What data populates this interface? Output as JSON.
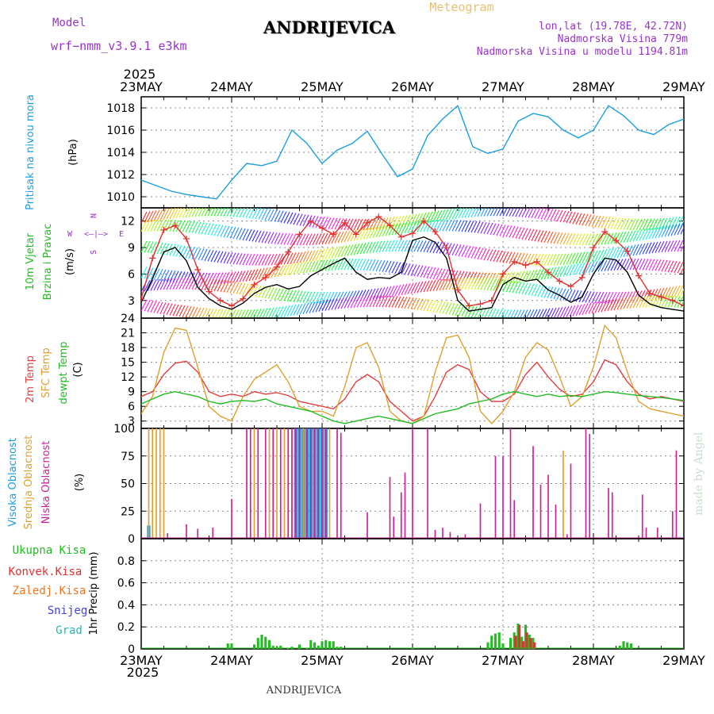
{
  "header": {
    "model_label": "Model",
    "model_name": "wrf−nmm_v3.9.1  e3km",
    "station": "ANDRIJEVICA",
    "product": "Meteogram",
    "lonlat": "lon,lat (19.78E, 42.72N)",
    "elevation": "Nadmorska Visina 779m",
    "model_elevation": "Nadmorska Visina u modelu 1194.81m",
    "footer_station": "ANDRIJEVICA",
    "watermark": "made by Angel"
  },
  "colors": {
    "pressure": "#1a9ee0",
    "wind_speed": "#000000",
    "wind_gust": "#e03030",
    "temp2m": "#e04040",
    "sfc_temp": "#e0a030",
    "dewpt": "#22bb22",
    "high_cloud": "#1a9ee0",
    "mid_cloud": "#e0a030",
    "low_cloud": "#cc2299",
    "total_precip": "#22bb22",
    "conv_precip": "#e03030",
    "frz_precip": "#ee7722",
    "snow": "#4444dd",
    "graupel": "#22bbbb",
    "compass": "#9933cc"
  },
  "time_axis": {
    "year": "2025",
    "ticks": [
      "23MAY",
      "24MAY",
      "25MAY",
      "26MAY",
      "27MAY",
      "28MAY",
      "29MAY"
    ]
  },
  "chart_data": [
    {
      "type": "line",
      "title": "Pritisak na nivou mora",
      "ylabel": "(hPa)",
      "ylim": [
        1009,
        1019
      ],
      "yticks": [
        "1010",
        "1012",
        "1014",
        "1016",
        "1018"
      ],
      "series": [
        {
          "name": "Pritisak na nivou mora",
          "x": [
            0,
            4,
            8,
            12,
            16,
            20,
            24,
            28,
            32,
            36,
            40,
            44,
            48,
            52,
            56,
            60,
            64,
            68,
            72,
            76,
            80,
            84,
            88,
            92,
            96,
            100,
            104,
            108,
            112,
            116,
            120,
            124,
            128,
            132,
            136,
            140,
            144
          ],
          "values": [
            1011.5,
            1011.0,
            1010.5,
            1010.2,
            1010.0,
            1009.8,
            1011.5,
            1013.0,
            1012.8,
            1013.2,
            1016.0,
            1014.8,
            1013.0,
            1014.2,
            1014.8,
            1015.9,
            1013.8,
            1011.8,
            1012.5,
            1015.5,
            1017.0,
            1018.2,
            1014.5,
            1013.9,
            1014.3,
            1016.8,
            1017.5,
            1017.2,
            1016.0,
            1015.3,
            1016.0,
            1018.2,
            1017.3,
            1016.0,
            1015.6,
            1016.5,
            1017.0
          ]
        }
      ]
    },
    {
      "type": "line",
      "title": "10m Vjetar Brzina i Pravac",
      "ylabel": "(m/s)",
      "ylim": [
        1,
        13.5
      ],
      "yticks": [
        "3",
        "6",
        "9",
        "12"
      ],
      "compass": [
        "N",
        "S",
        "E",
        "W",
        "<—|—>"
      ],
      "series": [
        {
          "name": "Brzina",
          "x": [
            0,
            3,
            6,
            9,
            12,
            15,
            18,
            21,
            24,
            27,
            30,
            33,
            36,
            39,
            42,
            45,
            48,
            51,
            54,
            57,
            60,
            63,
            66,
            69,
            72,
            75,
            78,
            81,
            84,
            87,
            90,
            93,
            96,
            99,
            102,
            105,
            108,
            111,
            114,
            117,
            120,
            123,
            126,
            129,
            132,
            135,
            138,
            141,
            144
          ],
          "values": [
            2.8,
            5.5,
            8.5,
            9.0,
            7.5,
            4.5,
            3.2,
            2.4,
            2.0,
            2.7,
            3.8,
            4.5,
            4.8,
            4.3,
            4.6,
            5.8,
            6.5,
            7.2,
            7.8,
            6.2,
            5.4,
            5.6,
            5.5,
            6.2,
            9.8,
            10.2,
            9.6,
            7.8,
            3.0,
            1.8,
            2.0,
            2.2,
            4.8,
            5.6,
            5.2,
            5.4,
            4.2,
            3.6,
            2.8,
            3.4,
            6.0,
            7.8,
            7.6,
            6.2,
            3.6,
            2.6,
            2.2,
            2.0,
            1.8
          ]
        },
        {
          "name": "Udari",
          "x": [
            0,
            3,
            6,
            9,
            12,
            15,
            18,
            21,
            24,
            27,
            30,
            33,
            36,
            39,
            42,
            45,
            48,
            51,
            54,
            57,
            60,
            63,
            66,
            69,
            72,
            75,
            78,
            81,
            84,
            87,
            90,
            93,
            96,
            99,
            102,
            105,
            108,
            111,
            114,
            117,
            120,
            123,
            126,
            129,
            132,
            135,
            138,
            141,
            144
          ],
          "values": [
            3.2,
            7.8,
            11.0,
            11.5,
            10.0,
            6.5,
            4.0,
            3.0,
            2.4,
            3.2,
            4.8,
            5.6,
            6.8,
            8.5,
            10.5,
            12.0,
            11.2,
            10.5,
            11.8,
            10.5,
            11.8,
            12.5,
            11.5,
            10.2,
            10.6,
            12.0,
            10.8,
            9.0,
            4.2,
            2.4,
            2.6,
            3.0,
            6.0,
            7.4,
            7.0,
            7.4,
            6.2,
            5.2,
            4.6,
            5.6,
            9.0,
            10.8,
            9.8,
            8.6,
            5.8,
            3.8,
            3.4,
            3.0,
            2.4
          ]
        }
      ]
    },
    {
      "type": "line",
      "title": "2m Temp / SFC Temp / dewpt Temp",
      "ylabel": "(C)",
      "ylim": [
        1.5,
        24
      ],
      "yticks": [
        "3",
        "6",
        "9",
        "12",
        "15",
        "18",
        "21",
        "24"
      ],
      "series": [
        {
          "name": "2m Temp",
          "x": [
            0,
            3,
            6,
            9,
            12,
            15,
            18,
            21,
            24,
            27,
            30,
            33,
            36,
            39,
            42,
            45,
            48,
            51,
            54,
            57,
            60,
            63,
            66,
            69,
            72,
            75,
            78,
            81,
            84,
            87,
            90,
            93,
            96,
            99,
            102,
            105,
            108,
            111,
            114,
            117,
            120,
            123,
            126,
            129,
            132,
            135,
            138,
            141,
            144
          ],
          "values": [
            8.0,
            9.0,
            12.5,
            14.8,
            15.2,
            13.0,
            9.0,
            8.0,
            8.5,
            8.0,
            9.0,
            8.5,
            8.8,
            8.2,
            7.0,
            6.5,
            6.0,
            5.5,
            7.5,
            11.0,
            12.5,
            11.0,
            7.0,
            5.0,
            3.0,
            4.0,
            8.0,
            13.0,
            14.5,
            13.5,
            9.0,
            7.0,
            7.0,
            8.5,
            12.5,
            15.0,
            12.0,
            9.5,
            8.0,
            8.5,
            11.0,
            15.5,
            14.5,
            11.0,
            8.5,
            7.5,
            8.0,
            7.5,
            7.0
          ]
        },
        {
          "name": "SFC Temp",
          "x": [
            0,
            3,
            6,
            9,
            12,
            15,
            18,
            21,
            24,
            27,
            30,
            33,
            36,
            39,
            42,
            45,
            48,
            51,
            54,
            57,
            60,
            63,
            66,
            69,
            72,
            75,
            78,
            81,
            84,
            87,
            90,
            93,
            96,
            99,
            102,
            105,
            108,
            111,
            114,
            117,
            120,
            123,
            126,
            129,
            132,
            135,
            138,
            141,
            144
          ],
          "values": [
            4.5,
            8.0,
            17.0,
            22.0,
            21.5,
            14.0,
            6.0,
            4.0,
            3.0,
            8.0,
            11.5,
            13.0,
            14.5,
            11.0,
            6.0,
            5.0,
            5.0,
            4.0,
            10.0,
            18.0,
            19.0,
            14.0,
            5.0,
            3.0,
            2.5,
            4.0,
            13.0,
            20.0,
            20.5,
            16.0,
            5.0,
            2.5,
            5.0,
            9.0,
            16.0,
            19.0,
            17.5,
            12.0,
            6.0,
            8.0,
            14.0,
            22.5,
            20.0,
            13.0,
            7.0,
            5.5,
            5.0,
            4.5,
            4.0
          ]
        },
        {
          "name": "dewpt Temp",
          "x": [
            0,
            3,
            6,
            9,
            12,
            15,
            18,
            21,
            24,
            27,
            30,
            33,
            36,
            39,
            42,
            45,
            48,
            51,
            54,
            57,
            60,
            63,
            66,
            69,
            72,
            75,
            78,
            81,
            84,
            87,
            90,
            93,
            96,
            99,
            102,
            105,
            108,
            111,
            114,
            117,
            120,
            123,
            126,
            129,
            132,
            135,
            138,
            141,
            144
          ],
          "values": [
            6.5,
            7.5,
            8.5,
            9.0,
            8.5,
            8.0,
            7.0,
            6.5,
            7.0,
            7.2,
            7.0,
            7.5,
            6.5,
            6.0,
            5.5,
            5.0,
            4.0,
            3.0,
            2.5,
            3.0,
            3.5,
            4.0,
            3.5,
            3.0,
            2.5,
            3.5,
            4.5,
            5.0,
            5.5,
            6.5,
            7.0,
            7.5,
            8.5,
            9.0,
            8.5,
            8.0,
            8.5,
            8.0,
            8.2,
            8.0,
            8.5,
            9.0,
            8.8,
            8.5,
            8.2,
            8.0,
            7.8,
            7.5,
            7.2
          ]
        }
      ]
    },
    {
      "type": "bar",
      "title": "Visoka / Srednja / Niska Oblacnost",
      "ylabel": "(%)",
      "ylim": [
        0,
        100
      ],
      "yticks": [
        "0",
        "25",
        "50",
        "75",
        "100"
      ],
      "series": [
        {
          "name": "Visoka Oblacnost",
          "x": [
            2,
            41,
            42,
            43,
            44,
            45,
            46,
            47,
            48,
            49
          ],
          "values": [
            12,
            100,
            100,
            100,
            100,
            100,
            100,
            100,
            100,
            100
          ]
        },
        {
          "name": "Srednja Oblacnost",
          "x": [
            2,
            3,
            4,
            5,
            6,
            30,
            34,
            36,
            38,
            39,
            40,
            41,
            42,
            43,
            44,
            45,
            46,
            47,
            48,
            49,
            50,
            112
          ],
          "values": [
            100,
            100,
            100,
            100,
            100,
            100,
            100,
            100,
            100,
            100,
            100,
            100,
            100,
            100,
            100,
            100,
            100,
            100,
            100,
            100,
            100,
            80
          ]
        },
        {
          "name": "Niska Oblacnost",
          "x": [
            7,
            12,
            15,
            19,
            24,
            28,
            29,
            31,
            33,
            35,
            37,
            39,
            40,
            41,
            42,
            44,
            45,
            46,
            47,
            48,
            49,
            52,
            53,
            60,
            66,
            67,
            69,
            70,
            72,
            76,
            78,
            80,
            82,
            86,
            90,
            94,
            96,
            98,
            99,
            104,
            106,
            108,
            110,
            113,
            114,
            118,
            119,
            124,
            125,
            133,
            134,
            137,
            141,
            142
          ],
          "values": [
            5,
            13,
            9,
            10,
            36,
            100,
            100,
            100,
            100,
            100,
            100,
            100,
            100,
            100,
            100,
            100,
            100,
            100,
            100,
            100,
            100,
            100,
            96,
            24,
            56,
            20,
            42,
            60,
            100,
            100,
            8,
            10,
            6,
            4,
            32,
            75,
            75,
            100,
            35,
            84,
            49,
            58,
            31,
            4,
            68,
            100,
            95,
            46,
            42,
            40,
            10,
            10,
            25,
            80
          ]
        }
      ]
    },
    {
      "type": "bar",
      "title": "1hr Precip",
      "ylabel": "1hr Precip (mm)",
      "ylim": [
        0,
        1.0
      ],
      "yticks": [
        "0",
        "0.2",
        "0.4",
        "0.6",
        "0.8"
      ],
      "legend": [
        "Ukupna Kisa",
        "Konvek.Kisa",
        "Zaledj.Kisa",
        "Snijeg",
        "Grad"
      ],
      "series": [
        {
          "name": "Ukupna Kisa",
          "x": [
            23,
            24,
            30,
            31,
            32,
            33,
            34,
            35,
            36,
            37,
            39,
            40,
            42,
            44,
            45,
            46,
            47,
            48,
            49,
            50,
            51,
            52,
            53,
            72,
            92,
            93,
            94,
            95,
            96,
            98,
            99,
            100,
            101,
            102,
            103,
            104,
            127,
            128,
            129,
            130
          ],
          "values": [
            0.05,
            0.05,
            0.04,
            0.1,
            0.13,
            0.11,
            0.08,
            0.03,
            0.02,
            0.03,
            0.01,
            0.02,
            0.04,
            0.01,
            0.08,
            0.06,
            0.03,
            0.07,
            0.08,
            0.07,
            0.07,
            0.02,
            0.02,
            0.01,
            0.06,
            0.12,
            0.14,
            0.15,
            0.05,
            0.1,
            0.15,
            0.23,
            0.11,
            0.22,
            0.13,
            0.1,
            0.03,
            0.07,
            0.06,
            0.05
          ]
        },
        {
          "name": "Konvek.Kisa",
          "x": [
            99,
            100,
            101,
            102,
            103,
            104
          ],
          "values": [
            0.12,
            0.22,
            0.07,
            0.15,
            0.1,
            0.06
          ]
        }
      ]
    }
  ],
  "panel_titles": {
    "p1": "Pritisak na nivou mora",
    "p1_unit": "(hPa)",
    "p2a": "10m Vjetar",
    "p2b": "Brzina i Pravac",
    "p2_unit": "(m/s)",
    "p3a": "2m Temp",
    "p3b": "SFC Temp",
    "p3c": "dewpt Temp",
    "p3_unit": "(C)",
    "p4a": "Visoka Oblacnost",
    "p4b": "Srednja Oblacnost",
    "p4c": "Niska Oblacnost",
    "p4_unit": "(%)",
    "p5_unit": "1hr Precip (mm)"
  }
}
